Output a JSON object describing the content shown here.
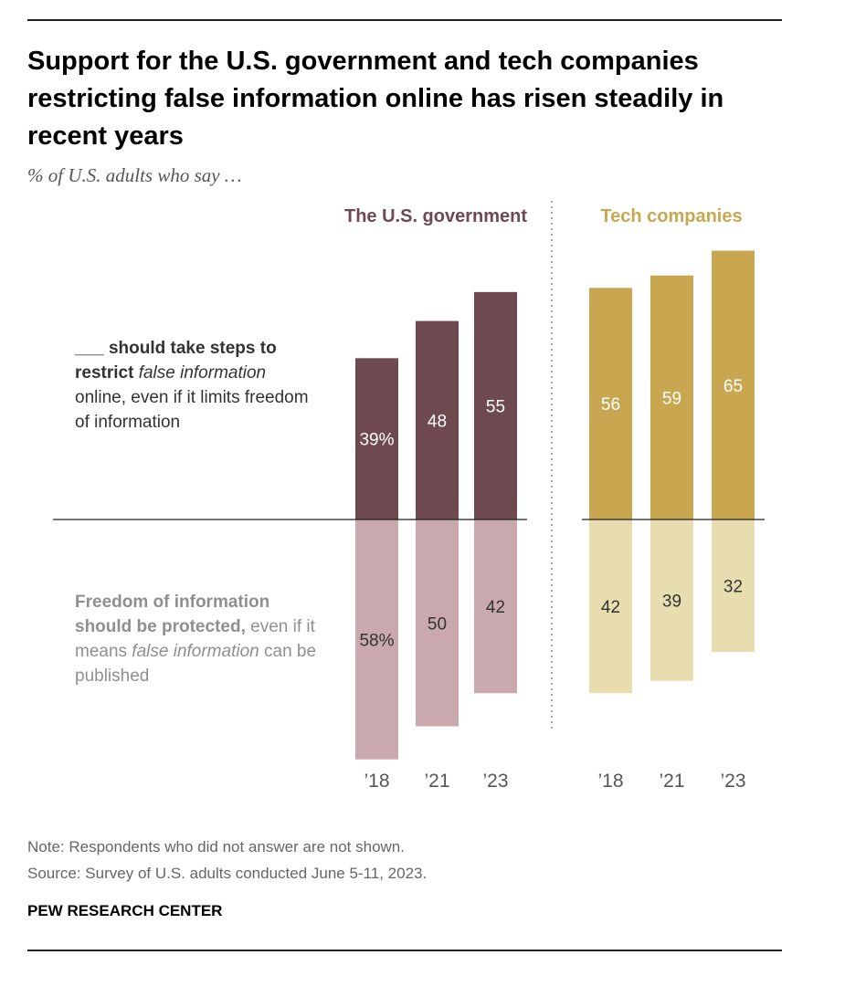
{
  "title": "Support for the U.S. government and tech companies restricting false information online has risen steadily in recent years",
  "subtitle": "% of U.S. adults who say …",
  "row_labels": {
    "restrict_blank": "___",
    "restrict_bold": " should take steps to restrict",
    "restrict_italic": " false information",
    "restrict_rest": " online, even if it limits freedom of information",
    "freedom_bold": "Freedom of information should be protected,",
    "freedom_text1": " even if it means",
    "freedom_italic": " false information",
    "freedom_text2": " can be published"
  },
  "note": "Note: Respondents who did not answer are not shown.",
  "source": "Source: Survey of U.S. adults conducted June 5-11, 2023.",
  "credit": "PEW RESEARCH CENTER",
  "colors": {
    "gov_dark": "#6f4950",
    "gov_light": "#caa9ae",
    "tech_dark": "#c9a751",
    "tech_light": "#e8ddaf",
    "gov_title": "#6f4950",
    "tech_title": "#c9a751"
  },
  "chart_data": {
    "type": "bar",
    "categories": [
      "’18",
      "’21",
      "’23"
    ],
    "panels": [
      {
        "title": "The U.S. government",
        "series": [
          {
            "name": "___ should take steps to restrict false information online, even if it limits freedom of information",
            "values": [
              39,
              48,
              55
            ],
            "labels": [
              "39%",
              "48",
              "55"
            ]
          },
          {
            "name": "Freedom of information should be protected, even if it means false information can be published",
            "values": [
              58,
              50,
              42
            ],
            "labels": [
              "58%",
              "50",
              "42"
            ]
          }
        ]
      },
      {
        "title": "Tech companies",
        "series": [
          {
            "name": "___ should take steps to restrict false information online, even if it limits freedom of information",
            "values": [
              56,
              59,
              65
            ],
            "labels": [
              "56",
              "59",
              "65"
            ]
          },
          {
            "name": "Freedom of information should be protected, even if it means false information can be published",
            "values": [
              42,
              39,
              32
            ],
            "labels": [
              "42",
              "39",
              "32"
            ]
          }
        ]
      }
    ]
  }
}
